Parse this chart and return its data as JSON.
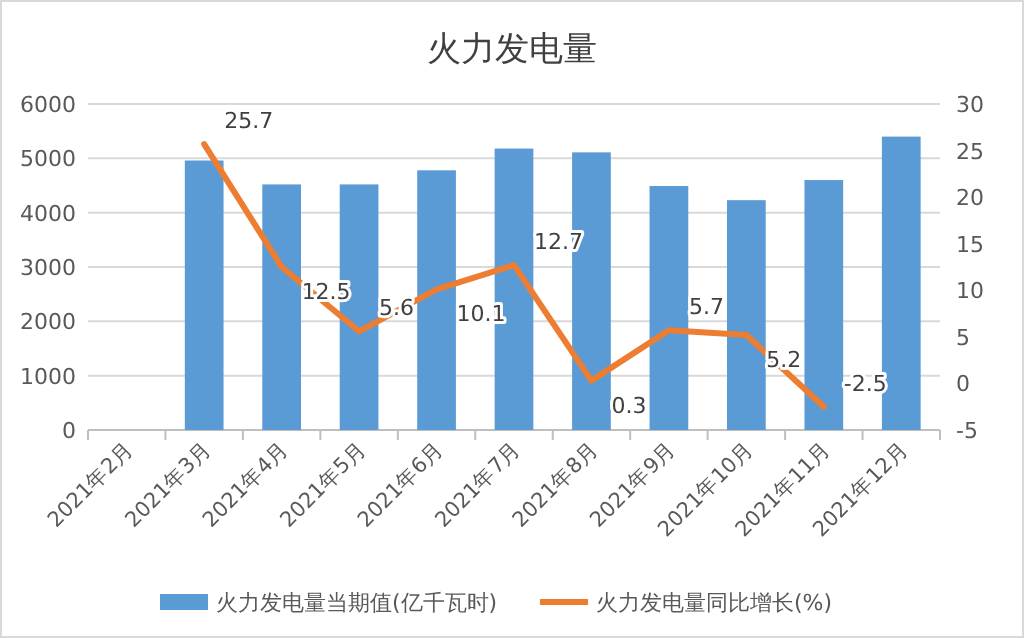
{
  "chart_data": {
    "type": "bar",
    "title": "火力发电量",
    "categories": [
      "2021年2月",
      "2021年3月",
      "2021年4月",
      "2021年5月",
      "2021年6月",
      "2021年7月",
      "2021年8月",
      "2021年9月",
      "2021年10月",
      "2021年11月",
      "2021年12月"
    ],
    "series": [
      {
        "name": "火力发电量当期值(亿千瓦时)",
        "color": "#5b9bd5",
        "values": [
          null,
          4960,
          4520,
          4520,
          4780,
          5180,
          5110,
          4490,
          4230,
          4600,
          5400
        ]
      },
      {
        "name": "火力发电量同比增长(%)",
        "type": "line",
        "axis": "y2",
        "color": "#ed7d31",
        "values": [
          null,
          25.7,
          12.5,
          5.6,
          10.1,
          12.7,
          0.3,
          5.7,
          5.2,
          -2.5,
          null
        ],
        "value_labels": [
          null,
          "25.7",
          "12.5",
          "5.6",
          "10.1",
          "12.7",
          "0.3",
          "5.7",
          "5.2",
          "-2.5",
          null
        ]
      }
    ],
    "ylim": [
      0,
      6000
    ],
    "yticks": [
      0,
      1000,
      2000,
      3000,
      4000,
      5000,
      6000
    ],
    "y2lim": [
      -5,
      30
    ],
    "y2ticks": [
      -5,
      0,
      5,
      10,
      15,
      20,
      25,
      30
    ],
    "grid": "y",
    "legend": "bottom"
  }
}
